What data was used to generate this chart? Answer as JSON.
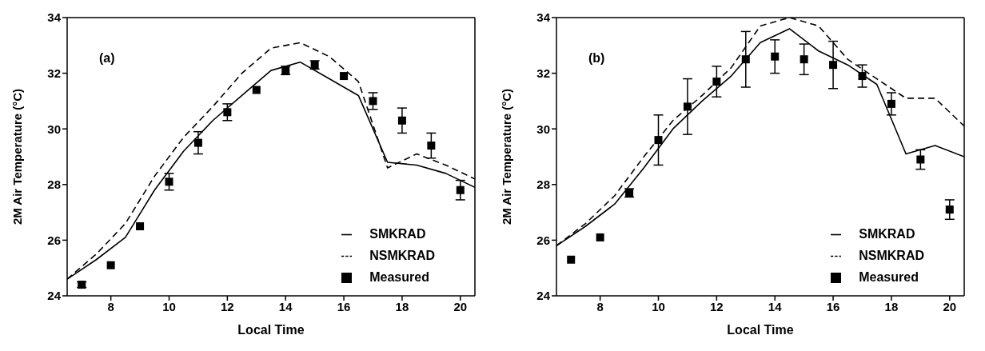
{
  "chart_data": [
    {
      "type": "line",
      "xlabel": "Local Time",
      "ylabel": "2M Air Temperature (°C)",
      "annotations": [
        "(a)"
      ],
      "xlim": [
        6.5,
        20.5
      ],
      "xticks": [
        8,
        10,
        12,
        14,
        16,
        18,
        20
      ],
      "ylim": [
        24,
        34
      ],
      "yticks": [
        24,
        26,
        28,
        30,
        32,
        34
      ],
      "legend": "bottom right",
      "series": [
        {
          "name": "SMKRAD",
          "type": "line",
          "color": "#000000",
          "line_style": "solid",
          "marker": "none",
          "x": [
            6.5,
            7.5,
            8.5,
            9.5,
            10.5,
            11.5,
            12.5,
            13.5,
            14.5,
            15.5,
            16.5,
            17.5,
            18.5,
            19.5,
            20.5
          ],
          "values": [
            24.6,
            25.3,
            26.1,
            27.8,
            29.2,
            30.3,
            31.2,
            32.1,
            32.4,
            31.8,
            31.2,
            28.8,
            28.7,
            28.4,
            27.9
          ]
        },
        {
          "name": "NSMKRAD",
          "type": "line",
          "color": "#000000",
          "line_style": "dashed",
          "marker": "none",
          "x": [
            6.5,
            7.5,
            8.5,
            9.5,
            10.5,
            11.5,
            12.5,
            13.5,
            14.5,
            15.5,
            16.5,
            17.5,
            18.5,
            19.5,
            20.5
          ],
          "values": [
            24.6,
            25.5,
            26.6,
            28.3,
            29.7,
            30.8,
            32.0,
            32.9,
            33.1,
            32.6,
            31.7,
            28.6,
            29.1,
            28.7,
            28.2
          ]
        },
        {
          "name": "Measured",
          "type": "scatter",
          "color": "#000000",
          "marker": "square",
          "x": [
            7,
            8,
            9,
            10,
            11,
            12,
            13,
            14,
            15,
            16,
            17,
            18,
            19,
            20
          ],
          "values": [
            24.4,
            25.1,
            26.5,
            28.1,
            29.5,
            30.6,
            31.4,
            32.1,
            32.3,
            31.9,
            31.0,
            30.3,
            29.4,
            27.8
          ],
          "errors": [
            0.1,
            null,
            null,
            0.3,
            0.4,
            0.3,
            null,
            0.15,
            0.15,
            null,
            0.3,
            0.45,
            0.45,
            0.35
          ]
        }
      ]
    },
    {
      "type": "line",
      "xlabel": "Local Time",
      "ylabel": "2M Air Temperature (°C)",
      "annotations": [
        "(b)"
      ],
      "xlim": [
        6.5,
        20.5
      ],
      "xticks": [
        8,
        10,
        12,
        14,
        16,
        18,
        20
      ],
      "ylim": [
        24,
        34
      ],
      "yticks": [
        24,
        26,
        28,
        30,
        32,
        34
      ],
      "legend": "bottom right",
      "series": [
        {
          "name": "SMKRAD",
          "type": "line",
          "color": "#000000",
          "line_style": "solid",
          "marker": "none",
          "x": [
            6.5,
            7.5,
            8.5,
            9.5,
            10.5,
            11.5,
            12.5,
            13.5,
            14.5,
            15.5,
            16.5,
            17.5,
            18.5,
            19.5,
            20.5
          ],
          "values": [
            25.8,
            26.5,
            27.3,
            28.6,
            30.0,
            31.0,
            31.9,
            33.1,
            33.6,
            32.8,
            32.3,
            31.6,
            29.1,
            29.4,
            29.0
          ]
        },
        {
          "name": "NSMKRAD",
          "type": "line",
          "color": "#000000",
          "line_style": "dashed",
          "marker": "none",
          "x": [
            6.5,
            7.5,
            8.5,
            9.5,
            10.5,
            11.5,
            12.5,
            13.5,
            14.5,
            15.5,
            16.5,
            17.5,
            18.5,
            19.5,
            20.5
          ],
          "values": [
            25.8,
            26.6,
            27.6,
            29.0,
            30.3,
            31.2,
            32.2,
            33.7,
            34.0,
            33.7,
            32.5,
            31.8,
            31.1,
            31.1,
            30.1
          ]
        },
        {
          "name": "Measured",
          "type": "scatter",
          "color": "#000000",
          "marker": "square",
          "x": [
            7,
            8,
            9,
            10,
            11,
            12,
            13,
            14,
            15,
            16,
            17,
            18,
            19,
            20
          ],
          "values": [
            25.3,
            26.1,
            27.7,
            29.6,
            30.8,
            31.7,
            32.5,
            32.6,
            32.5,
            32.3,
            31.9,
            30.9,
            28.9,
            27.1
          ],
          "errors": [
            null,
            null,
            0.15,
            0.9,
            1.0,
            0.55,
            1.0,
            0.6,
            0.55,
            0.85,
            0.4,
            0.4,
            0.35,
            0.35
          ]
        }
      ]
    }
  ]
}
